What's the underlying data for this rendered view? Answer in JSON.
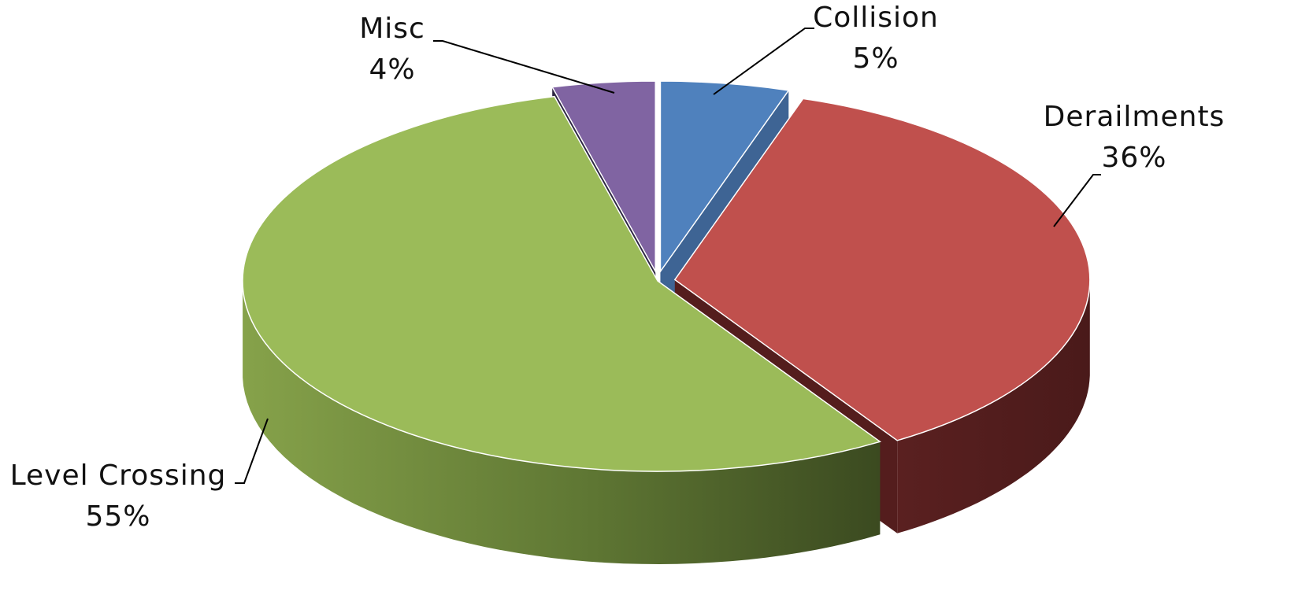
{
  "chart_data": {
    "type": "pie",
    "style": "3d-exploded",
    "title": "",
    "start_angle_deg": 90,
    "direction": "clockwise",
    "legend": "none",
    "slices": [
      {
        "name": "Collision",
        "value": 5,
        "label": "5%",
        "color": "#4F81BD"
      },
      {
        "name": "Derailments",
        "value": 36,
        "label": "36%",
        "color": "#C0504D"
      },
      {
        "name": "Level Crossing",
        "value": 55,
        "label": "55%",
        "color": "#9BBB59"
      },
      {
        "name": "Misc",
        "value": 4,
        "label": "4%",
        "color": "#8064A2"
      }
    ]
  }
}
